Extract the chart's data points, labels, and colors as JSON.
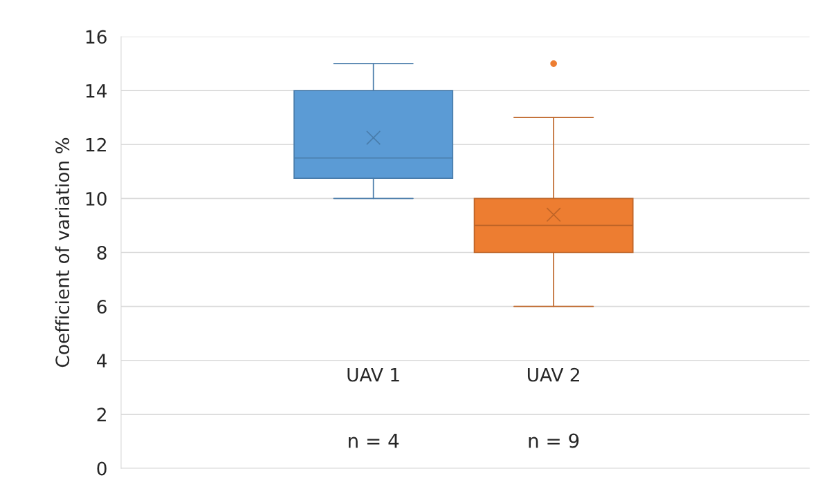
{
  "chart_data": {
    "type": "box",
    "ylabel": "Coefficient of variation %",
    "categories": [
      "UAV 1",
      "UAV 2"
    ],
    "series": [
      {
        "color": "#5b9bd5",
        "boxes": [
          {
            "low": 10,
            "q1": 10.75,
            "median": 11.5,
            "q3": 14,
            "high": 15,
            "mean": 12.25
          },
          null
        ]
      },
      {
        "color": "#ed7d31",
        "boxes": [
          null,
          {
            "low": 6,
            "q1": 8,
            "median": 9,
            "q3": 10,
            "high": 13,
            "mean": 9.4,
            "outliers": [
              15
            ]
          }
        ]
      }
    ],
    "annotations": [
      "n = 4",
      "n = 9"
    ],
    "ylim": [
      0,
      16
    ],
    "yticks": [
      0,
      2,
      4,
      6,
      8,
      10,
      12,
      14,
      16
    ],
    "grid": "y",
    "legend": false
  }
}
